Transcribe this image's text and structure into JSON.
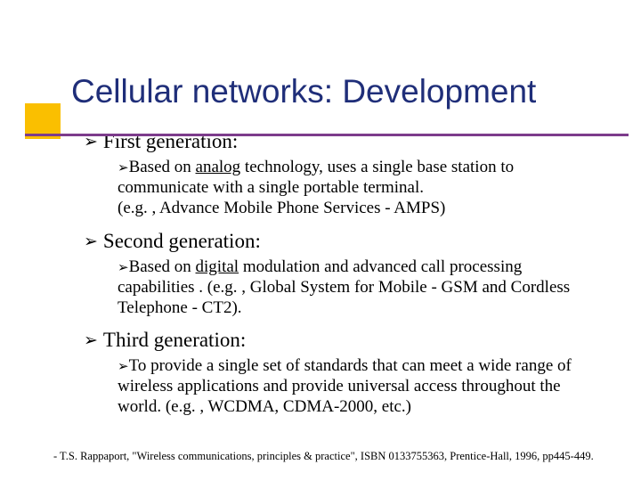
{
  "colors": {
    "title": "#1f2e79",
    "accent_box": "#fabf00",
    "underline": "#7d3c8c",
    "text": "#000000",
    "background": "#ffffff"
  },
  "title": "Cellular networks: Development",
  "bullet_glyph": "➢",
  "generations": {
    "g1": {
      "heading": "First generation:",
      "body_prefix": "Based on ",
      "underlined": "analog",
      "body_suffix": " technology, uses a single base station to communicate with a single portable terminal.",
      "example": "(e.g. , Advance Mobile Phone Services - AMPS)"
    },
    "g2": {
      "heading": "Second generation:",
      "body_prefix": "Based on ",
      "underlined": "digital",
      "body_suffix": " modulation and advanced call processing capabilities . (e.g. , Global System for Mobile - GSM and Cordless Telephone - CT2)."
    },
    "g3": {
      "heading": "Third generation:",
      "body": "To provide a single set of standards that can meet a wide range of wireless applications and provide universal access throughout the world. (e.g. , WCDMA, CDMA-2000, etc.)"
    }
  },
  "citation": "- T.S. Rappaport, \"Wireless communications, principles & practice\", ISBN 0133755363, Prentice-Hall, 1996, pp445-449."
}
